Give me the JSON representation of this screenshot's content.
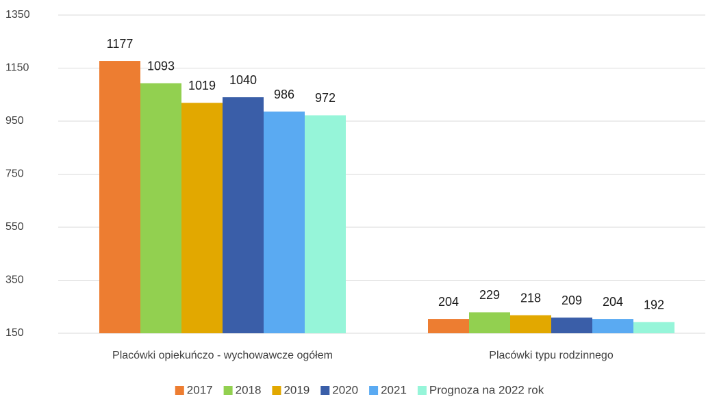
{
  "chart_data": {
    "type": "bar",
    "categories": [
      "Placówki opiekuńczo - wychowawcze ogółem",
      "Placówki typu rodzinnego"
    ],
    "series": [
      {
        "name": "2017",
        "color": "#ed7d31",
        "values": [
          1177,
          204
        ]
      },
      {
        "name": "2018",
        "color": "#92d050",
        "values": [
          1093,
          229
        ]
      },
      {
        "name": "2019",
        "color": "#e2a800",
        "values": [
          1019,
          218
        ]
      },
      {
        "name": "2020",
        "color": "#3a5ea8",
        "values": [
          1040,
          209
        ]
      },
      {
        "name": "2021",
        "color": "#5aaaf2",
        "values": [
          986,
          204
        ]
      },
      {
        "name": "Prognoza na 2022 rok",
        "color": "#96f5d9",
        "values": [
          972,
          192
        ]
      }
    ],
    "ylim": [
      150,
      1350
    ],
    "yticks": [
      150,
      350,
      550,
      750,
      950,
      1150,
      1350
    ],
    "grid": true,
    "legend": "bottom"
  }
}
